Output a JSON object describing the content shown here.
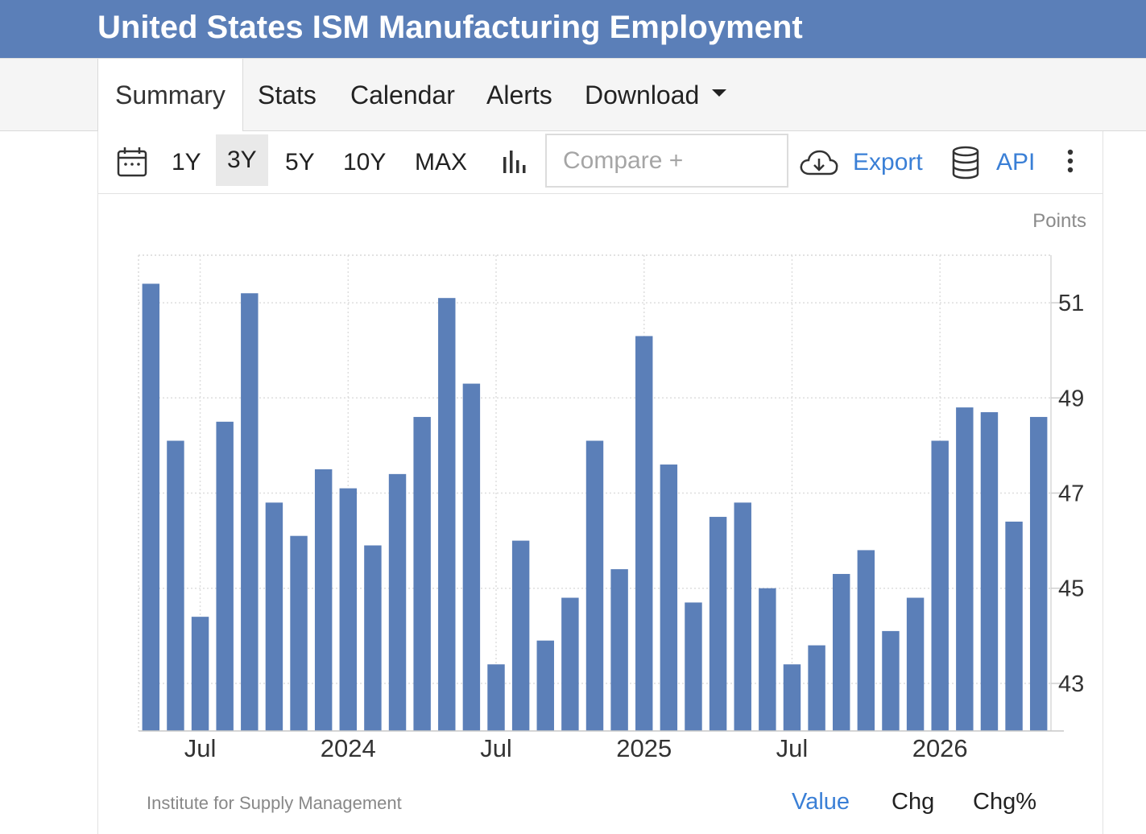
{
  "header": {
    "title": "United States ISM Manufacturing Employment"
  },
  "tabs": [
    {
      "label": "Summary",
      "active": true
    },
    {
      "label": "Stats"
    },
    {
      "label": "Calendar"
    },
    {
      "label": "Alerts"
    },
    {
      "label": "Download"
    }
  ],
  "toolbar": {
    "ranges": [
      "1Y",
      "3Y",
      "5Y",
      "10Y",
      "MAX"
    ],
    "active_range": "3Y",
    "compare_placeholder": "Compare +",
    "export_label": "Export",
    "api_label": "API",
    "icons": [
      "calendar-icon",
      "bar-chart-icon",
      "cloud-download-icon",
      "database-icon",
      "more-vertical-icon"
    ]
  },
  "colors": {
    "bar": "#5b7fb8",
    "accent": "#3a7fd6",
    "header": "#5b7fb8"
  },
  "chart_data": {
    "type": "bar",
    "units": "Points",
    "x": [
      "2023-05",
      "2023-06",
      "2023-07",
      "2023-08",
      "2023-09",
      "2023-10",
      "2023-11",
      "2023-12",
      "2024-01",
      "2024-02",
      "2024-03",
      "2024-04",
      "2024-05",
      "2024-06",
      "2024-07",
      "2024-08",
      "2024-09",
      "2024-10",
      "2024-11",
      "2024-12",
      "2025-01",
      "2025-02",
      "2025-03",
      "2025-04",
      "2025-05",
      "2025-06",
      "2025-07",
      "2025-08",
      "2025-09",
      "2025-10",
      "2025-11",
      "2025-12",
      "2026-01",
      "2026-02",
      "2026-03",
      "2026-04",
      "2026-05"
    ],
    "values": [
      51.4,
      48.1,
      44.4,
      48.5,
      51.2,
      46.8,
      46.1,
      47.5,
      47.1,
      45.9,
      47.4,
      48.6,
      51.1,
      49.3,
      43.4,
      46.0,
      43.9,
      44.8,
      48.1,
      45.4,
      50.3,
      47.6,
      44.7,
      46.5,
      46.8,
      45.0,
      43.4,
      43.8,
      45.3,
      45.8,
      44.1,
      44.8,
      48.1,
      48.8,
      48.7,
      46.4,
      48.6
    ],
    "x_tick_labels": [
      "Jul",
      "2024",
      "Jul",
      "2025",
      "Jul",
      "2026"
    ],
    "x_tick_at": [
      "2023-07",
      "2024-01",
      "2024-07",
      "2025-01",
      "2025-07",
      "2026-01"
    ],
    "y_ticks": [
      43,
      45,
      47,
      49,
      51
    ],
    "ylim": [
      42.0,
      52.0
    ],
    "grid": true,
    "y_axis_side": "right"
  },
  "footer": {
    "source": "Institute for Supply Management",
    "modes": [
      "Value",
      "Chg",
      "Chg%"
    ],
    "active_mode": "Value"
  }
}
